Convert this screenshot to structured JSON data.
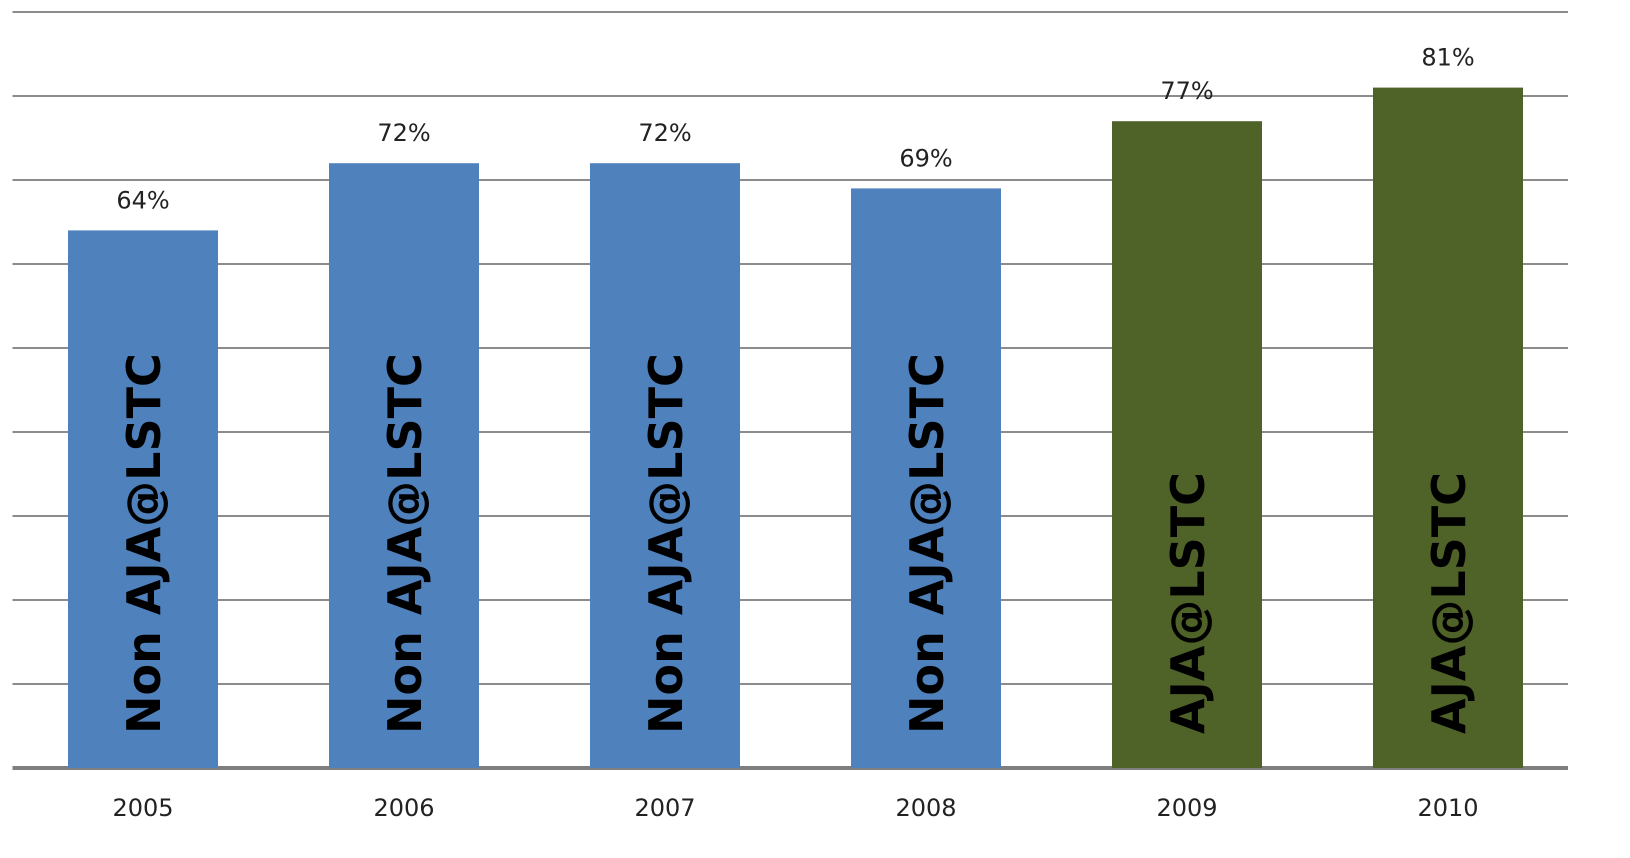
{
  "chart_data": {
    "type": "bar",
    "categories": [
      "2005",
      "2006",
      "2007",
      "2008",
      "2009",
      "2010"
    ],
    "values": [
      64,
      72,
      72,
      69,
      77,
      81
    ],
    "value_labels": [
      "64%",
      "72%",
      "72%",
      "69%",
      "77%",
      "81%"
    ],
    "bar_labels": [
      "Non AJA@LSTC",
      "Non AJA@LSTC",
      "Non AJA@LSTC",
      "Non AJA@LSTC",
      "AJA@LSTC",
      "AJA@LSTC"
    ],
    "colors": [
      "#4f81bd",
      "#4f81bd",
      "#4f81bd",
      "#4f81bd",
      "#4f6228",
      "#4f6228"
    ],
    "ylim": [
      0,
      90
    ],
    "yticks": [
      0,
      10,
      20,
      30,
      40,
      50,
      60,
      70,
      80,
      90
    ],
    "grid": true
  }
}
